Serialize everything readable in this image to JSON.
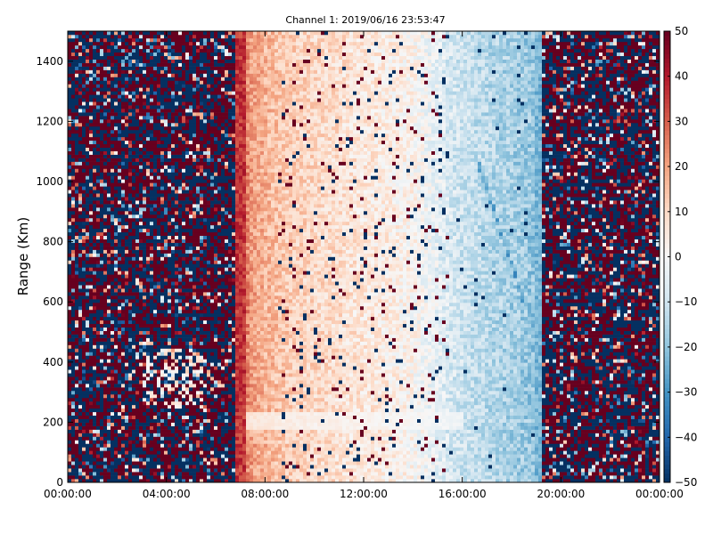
{
  "chart_data": {
    "type": "heatmap",
    "title": "Channel 1: 2019/06/16 23:53:47",
    "xlabel": "",
    "ylabel": "Range (Km)",
    "x_ticks": [
      "00:00:00",
      "04:00:00",
      "08:00:00",
      "12:00:00",
      "16:00:00",
      "20:00:00",
      "00:00:00"
    ],
    "x_range_hours": [
      0,
      24
    ],
    "y_ticks": [
      0,
      200,
      400,
      600,
      800,
      1000,
      1200,
      1400
    ],
    "ylim": [
      0,
      1500
    ],
    "colorbar": {
      "colormap": "RdBu_r",
      "vmin": -50,
      "vmax": 50,
      "ticks": [
        50,
        40,
        30,
        20,
        10,
        0,
        -10,
        -20,
        -30,
        -40,
        -50
      ],
      "colors": [
        "#053061",
        "#2166ac",
        "#4393c3",
        "#92c5de",
        "#d1e5f0",
        "#f7f7f7",
        "#fddbc7",
        "#f4a582",
        "#d6604d",
        "#b2182b",
        "#67001f"
      ]
    },
    "profile": {
      "description_hours": [
        0,
        6.8,
        7.2,
        9,
        12,
        14,
        16,
        17.5,
        19.2,
        24
      ],
      "noise_until_hour": 6.8,
      "noise_from_hour": 19.2,
      "mean_value_by_hour": [
        {
          "h": 6.8,
          "v": 35
        },
        {
          "h": 7.5,
          "v": 20
        },
        {
          "h": 9,
          "v": 12
        },
        {
          "h": 12,
          "v": 6
        },
        {
          "h": 14,
          "v": 2
        },
        {
          "h": 15.5,
          "v": -8
        },
        {
          "h": 17,
          "v": -14
        },
        {
          "h": 19.2,
          "v": -20
        }
      ]
    }
  }
}
